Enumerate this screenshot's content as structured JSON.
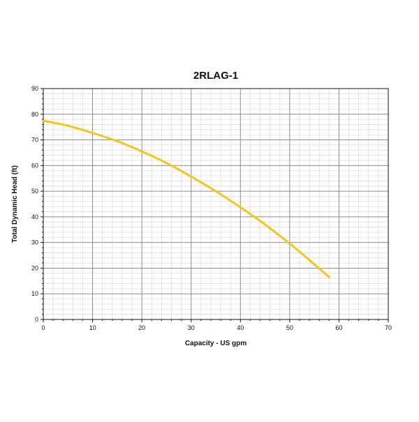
{
  "chart_data": {
    "type": "line",
    "title": "2RLAG-1",
    "xlabel": "Capacity - US gpm",
    "ylabel": "Total Dynamic Head (ft)",
    "xlim": [
      0,
      70
    ],
    "ylim": [
      0,
      90
    ],
    "x_major_ticks": [
      0,
      10,
      20,
      30,
      40,
      50,
      60,
      70
    ],
    "y_major_ticks": [
      0,
      10,
      20,
      30,
      40,
      50,
      60,
      70,
      80,
      90
    ],
    "x_tick_labels": [
      "0",
      "10",
      "20",
      "30",
      "40",
      "50",
      "60",
      "70"
    ],
    "y_tick_labels": [
      "0",
      "10",
      "20",
      "30",
      "40",
      "50",
      "60",
      "70",
      "80",
      "90"
    ],
    "x_minor_step": 2,
    "y_minor_step": 2,
    "grid": true,
    "legend": "none",
    "series": [
      {
        "color": "#f5c518",
        "x": [
          0,
          5,
          10,
          15,
          20,
          25,
          30,
          35,
          40,
          45,
          50,
          55,
          58
        ],
        "y": [
          77.5,
          75.5,
          72.7,
          69.5,
          65.5,
          61.0,
          55.7,
          50.0,
          43.7,
          37.0,
          29.6,
          21.5,
          16.5
        ]
      }
    ],
    "colors": {
      "major_grid": "#8c8c8c",
      "minor_grid": "#d9d9d9",
      "axis": "#111111"
    }
  }
}
